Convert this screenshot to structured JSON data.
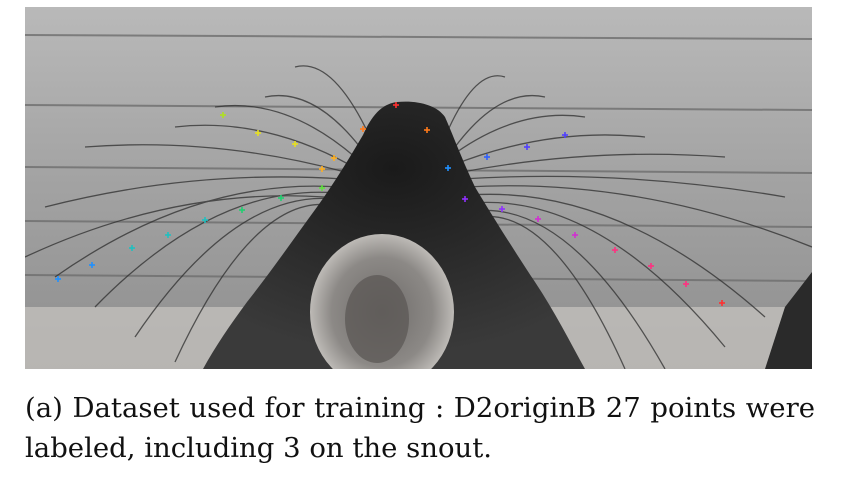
{
  "figure": {
    "type": "photograph",
    "subject": "rat-snout-whiskers",
    "keypoint_colors": [
      "#ff3030",
      "#ff7a1a",
      "#ffb020",
      "#e6e020",
      "#b0e020",
      "#60e040",
      "#20d070",
      "#20c0c0",
      "#2090ff",
      "#3060ff",
      "#5040ff",
      "#9030ff",
      "#d030d0",
      "#ff3080"
    ]
  },
  "caption": {
    "label": "(a)",
    "text": "Dataset used for training : D2originB 27 points were labeled, including 3 on the snout."
  }
}
